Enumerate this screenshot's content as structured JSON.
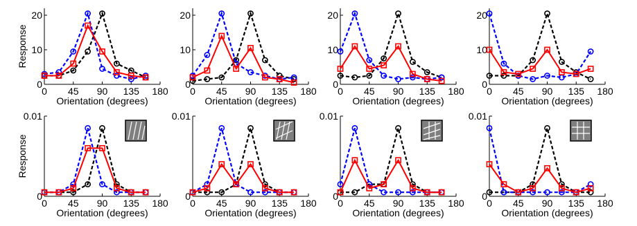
{
  "figure": {
    "y_label": "Response",
    "x_label": "Orientation (degrees)"
  },
  "colors": {
    "series_black": "#000000",
    "series_blue": "#0000ff",
    "series_red": "#ff0000"
  },
  "chart_data": [
    {
      "type": "line",
      "row": 0,
      "col": 0,
      "x": [
        0,
        22.5,
        45,
        67.5,
        90,
        112.5,
        135,
        157.5
      ],
      "xlim": [
        0,
        180
      ],
      "ylim": [
        0,
        22
      ],
      "x_ticks": [
        0,
        45,
        90,
        135,
        180
      ],
      "y_ticks": [
        {
          "v": 0,
          "label": "0"
        },
        {
          "v": 10,
          "label": "10"
        },
        {
          "v": 20,
          "label": "20"
        }
      ],
      "xlabel": "Orientation (degrees)",
      "ylabel": "Response",
      "series": [
        {
          "color": "black",
          "line": "dashed",
          "marker": "circle",
          "values": [
            2.5,
            2.5,
            4,
            9.5,
            20.5,
            6,
            4,
            2
          ]
        },
        {
          "color": "blue",
          "line": "dashed",
          "marker": "circle",
          "values": [
            3,
            3.5,
            9.5,
            20.5,
            4.5,
            2.5,
            1.5,
            2.5
          ]
        },
        {
          "color": "red",
          "line": "solid",
          "marker": "square",
          "values": [
            2.5,
            2.5,
            6,
            17,
            9.5,
            3.5,
            2.5,
            2
          ]
        }
      ],
      "inset": null
    },
    {
      "type": "line",
      "row": 0,
      "col": 1,
      "x": [
        0,
        22.5,
        45,
        67.5,
        90,
        112.5,
        135,
        157.5
      ],
      "xlim": [
        0,
        180
      ],
      "ylim": [
        0,
        22
      ],
      "x_ticks": [
        0,
        45,
        90,
        135,
        180
      ],
      "y_ticks": [
        {
          "v": 0,
          "label": "0"
        },
        {
          "v": 10,
          "label": "10"
        },
        {
          "v": 20,
          "label": "20"
        }
      ],
      "xlabel": "Orientation (degrees)",
      "ylabel": "",
      "series": [
        {
          "color": "black",
          "line": "dashed",
          "marker": "circle",
          "values": [
            1,
            1.5,
            2,
            7,
            20.5,
            7,
            2.5,
            1.5
          ]
        },
        {
          "color": "blue",
          "line": "dashed",
          "marker": "circle",
          "values": [
            2.5,
            8.5,
            20.5,
            6,
            3.5,
            2.5,
            1.5,
            2
          ]
        },
        {
          "color": "red",
          "line": "solid",
          "marker": "square",
          "values": [
            2,
            4,
            14,
            4.5,
            10.5,
            2,
            1.5,
            0.5
          ]
        }
      ],
      "inset": null
    },
    {
      "type": "line",
      "row": 0,
      "col": 2,
      "x": [
        0,
        22.5,
        45,
        67.5,
        90,
        112.5,
        135,
        157.5
      ],
      "xlim": [
        0,
        180
      ],
      "ylim": [
        0,
        22
      ],
      "x_ticks": [
        0,
        45,
        90,
        135,
        180
      ],
      "y_ticks": [
        {
          "v": 0,
          "label": "0"
        },
        {
          "v": 10,
          "label": "10"
        },
        {
          "v": 20,
          "label": "20"
        }
      ],
      "xlabel": "Orientation (degrees)",
      "ylabel": "",
      "series": [
        {
          "color": "black",
          "line": "dashed",
          "marker": "circle",
          "values": [
            2.5,
            2,
            2.5,
            7.5,
            20.5,
            6.5,
            3.5,
            2
          ]
        },
        {
          "color": "blue",
          "line": "dashed",
          "marker": "circle",
          "values": [
            9.5,
            20.5,
            7,
            2.5,
            1.5,
            2,
            1.5,
            2
          ]
        },
        {
          "color": "red",
          "line": "solid",
          "marker": "square",
          "values": [
            4.5,
            11,
            4.5,
            5.5,
            11,
            3,
            1.5,
            1
          ]
        }
      ],
      "inset": null
    },
    {
      "type": "line",
      "row": 0,
      "col": 3,
      "x": [
        0,
        22.5,
        45,
        67.5,
        90,
        112.5,
        135,
        157.5
      ],
      "xlim": [
        0,
        180
      ],
      "ylim": [
        0,
        22
      ],
      "x_ticks": [
        0,
        45,
        90,
        135,
        180
      ],
      "y_ticks": [
        {
          "v": 0,
          "label": "0"
        },
        {
          "v": 10,
          "label": "10"
        },
        {
          "v": 20,
          "label": "20"
        }
      ],
      "xlabel": "Orientation (degrees)",
      "ylabel": "",
      "series": [
        {
          "color": "black",
          "line": "dashed",
          "marker": "circle",
          "values": [
            2.5,
            2.5,
            2.5,
            7,
            20.5,
            6.5,
            3.5,
            1.5
          ]
        },
        {
          "color": "blue",
          "line": "dashed",
          "marker": "circle",
          "values": [
            20.5,
            6,
            2.5,
            1.5,
            2.5,
            2,
            3,
            9.5
          ]
        },
        {
          "color": "red",
          "line": "solid",
          "marker": "square",
          "values": [
            10,
            3.5,
            3,
            4.5,
            10,
            3.5,
            3,
            4.5
          ]
        }
      ],
      "inset": null
    },
    {
      "type": "line",
      "row": 1,
      "col": 0,
      "x": [
        0,
        22.5,
        45,
        67.5,
        90,
        112.5,
        135,
        157.5
      ],
      "xlim": [
        0,
        180
      ],
      "ylim": [
        0,
        0.01
      ],
      "x_ticks": [
        0,
        45,
        90,
        135,
        180
      ],
      "y_ticks": [
        {
          "v": 0,
          "label": "0"
        },
        {
          "v": 0.01,
          "label": "0.01"
        }
      ],
      "xlabel": "Orientation (degrees)",
      "ylabel": "Response",
      "series": [
        {
          "color": "black",
          "line": "dashed",
          "marker": "circle",
          "values": [
            0.0005,
            0.0005,
            0.0005,
            0.0015,
            0.0085,
            0.0015,
            0.0005,
            0.0005
          ]
        },
        {
          "color": "blue",
          "line": "dashed",
          "marker": "circle",
          "values": [
            0.0005,
            0.0005,
            0.0015,
            0.0085,
            0.0015,
            0.0005,
            0.0005,
            0.0005
          ]
        },
        {
          "color": "red",
          "line": "solid",
          "marker": "square",
          "values": [
            0.0005,
            0.0005,
            0.001,
            0.006,
            0.006,
            0.001,
            0.0005,
            0.0005
          ]
        }
      ],
      "inset": "parallel-diagonal-lines"
    },
    {
      "type": "line",
      "row": 1,
      "col": 1,
      "x": [
        0,
        22.5,
        45,
        67.5,
        90,
        112.5,
        135,
        157.5
      ],
      "xlim": [
        0,
        180
      ],
      "ylim": [
        0,
        0.01
      ],
      "x_ticks": [
        0,
        45,
        90,
        135,
        180
      ],
      "y_ticks": [
        {
          "v": 0,
          "label": "0"
        },
        {
          "v": 0.01,
          "label": "0.01"
        }
      ],
      "xlabel": "Orientation (degrees)",
      "ylabel": "",
      "series": [
        {
          "color": "black",
          "line": "dashed",
          "marker": "circle",
          "values": [
            0.0005,
            0.0005,
            0.0005,
            0.0015,
            0.0085,
            0.0015,
            0.0005,
            0.0005
          ]
        },
        {
          "color": "blue",
          "line": "dashed",
          "marker": "circle",
          "values": [
            0.0005,
            0.0015,
            0.0085,
            0.0015,
            0.0005,
            0.0005,
            0.0005,
            0.0005
          ]
        },
        {
          "color": "red",
          "line": "solid",
          "marker": "square",
          "values": [
            0.0005,
            0.001,
            0.004,
            0.0015,
            0.004,
            0.001,
            0.0005,
            0.0005
          ]
        }
      ],
      "inset": "crossing-lines"
    },
    {
      "type": "line",
      "row": 1,
      "col": 2,
      "x": [
        0,
        22.5,
        45,
        67.5,
        90,
        112.5,
        135,
        157.5
      ],
      "xlim": [
        0,
        180
      ],
      "ylim": [
        0,
        0.01
      ],
      "x_ticks": [
        0,
        45,
        90,
        135,
        180
      ],
      "y_ticks": [
        {
          "v": 0,
          "label": "0"
        },
        {
          "v": 0.01,
          "label": "0.01"
        }
      ],
      "xlabel": "Orientation (degrees)",
      "ylabel": "",
      "series": [
        {
          "color": "black",
          "line": "dashed",
          "marker": "circle",
          "values": [
            0.0005,
            0.0005,
            0.0015,
            0.0015,
            0.0085,
            0.0015,
            0.0005,
            0.0005
          ]
        },
        {
          "color": "blue",
          "line": "dashed",
          "marker": "circle",
          "values": [
            0.0015,
            0.0085,
            0.0015,
            0.0005,
            0.0005,
            0.0005,
            0.0005,
            0.0005
          ]
        },
        {
          "color": "red",
          "line": "solid",
          "marker": "square",
          "values": [
            0.0005,
            0.0045,
            0.001,
            0.0015,
            0.0045,
            0.001,
            0.0005,
            0.0005
          ]
        }
      ],
      "inset": "oblique-grid"
    },
    {
      "type": "line",
      "row": 1,
      "col": 3,
      "x": [
        0,
        22.5,
        45,
        67.5,
        90,
        112.5,
        135,
        157.5
      ],
      "xlim": [
        0,
        180
      ],
      "ylim": [
        0,
        0.01
      ],
      "x_ticks": [
        0,
        45,
        90,
        135,
        180
      ],
      "y_ticks": [
        {
          "v": 0,
          "label": "0"
        },
        {
          "v": 0.01,
          "label": "0.01"
        }
      ],
      "xlabel": "Orientation (degrees)",
      "ylabel": "",
      "series": [
        {
          "color": "black",
          "line": "dashed",
          "marker": "circle",
          "values": [
            0.0005,
            0.0005,
            0.0005,
            0.0015,
            0.0085,
            0.0015,
            0.0005,
            0.0005
          ]
        },
        {
          "color": "blue",
          "line": "dashed",
          "marker": "circle",
          "values": [
            0.0085,
            0.0005,
            0.0005,
            0.0005,
            0.0005,
            0.0005,
            0.0005,
            0.0015
          ]
        },
        {
          "color": "red",
          "line": "solid",
          "marker": "square",
          "values": [
            0.004,
            0.0015,
            0.0005,
            0.001,
            0.0035,
            0.001,
            0.0005,
            0.001
          ]
        }
      ],
      "inset": "plaid-grid"
    }
  ]
}
